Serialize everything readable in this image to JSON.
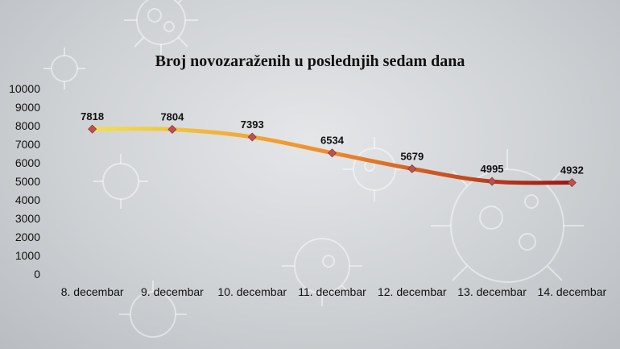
{
  "chart_data": {
    "type": "line",
    "title": "Broj novozaraženih u poslednjih sedam dana",
    "categories": [
      "8. decembar",
      "9. decembar",
      "10. decembar",
      "11. decembar",
      "12. decembar",
      "13. decembar",
      "14. decembar"
    ],
    "values": [
      7818,
      7804,
      7393,
      6534,
      5679,
      4995,
      4932
    ],
    "data_labels": [
      "7818",
      "7804",
      "7393",
      "6534",
      "5679",
      "4995",
      "4932"
    ],
    "y_ticks": [
      "0",
      "1000",
      "2000",
      "3000",
      "4000",
      "5000",
      "6000",
      "7000",
      "8000",
      "9000",
      "10000"
    ],
    "ylim": [
      0,
      10000
    ],
    "grid": false,
    "legend": "none",
    "colors": {
      "line_start": "#f3e04a",
      "line_mid": "#ef8a2c",
      "line_end": "#9e1414",
      "marker": "#c0504d"
    }
  }
}
